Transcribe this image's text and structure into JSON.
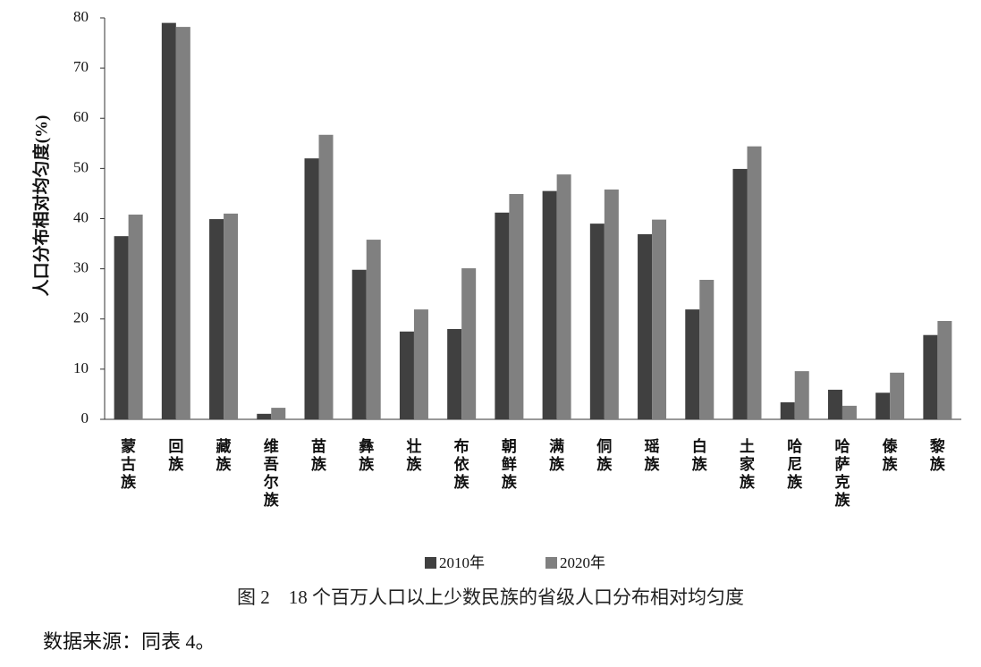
{
  "chart_data": {
    "type": "bar",
    "y_label": "人口分布相对均匀度(%)",
    "categories": [
      "蒙古族",
      "回族",
      "藏族",
      "维吾尔族",
      "苗族",
      "彝族",
      "壮族",
      "布依族",
      "朝鲜族",
      "满族",
      "侗族",
      "瑶族",
      "白族",
      "土家族",
      "哈尼族",
      "哈萨克族",
      "傣族",
      "黎族"
    ],
    "series": [
      {
        "name": "2010年",
        "color": "#404040",
        "values": [
          36.5,
          79,
          39.9,
          1.1,
          52,
          29.8,
          17.5,
          18,
          41.2,
          45.5,
          39,
          36.9,
          21.9,
          49.9,
          3.4,
          5.9,
          5.3,
          16.8
        ]
      },
      {
        "name": "2020年",
        "color": "#808080",
        "values": [
          40.8,
          78.2,
          41,
          2.3,
          56.7,
          35.8,
          21.9,
          30.1,
          44.9,
          48.8,
          45.8,
          39.8,
          27.8,
          54.4,
          9.6,
          2.7,
          9.3,
          19.6
        ]
      }
    ],
    "ylim": [
      0,
      80
    ],
    "yticks": [
      0,
      10,
      20,
      30,
      40,
      50,
      60,
      70,
      80
    ],
    "caption": "图 2　18 个百万人口以上少数民族的省级人口分布相对均匀度",
    "source": "数据来源：同表 4。"
  }
}
